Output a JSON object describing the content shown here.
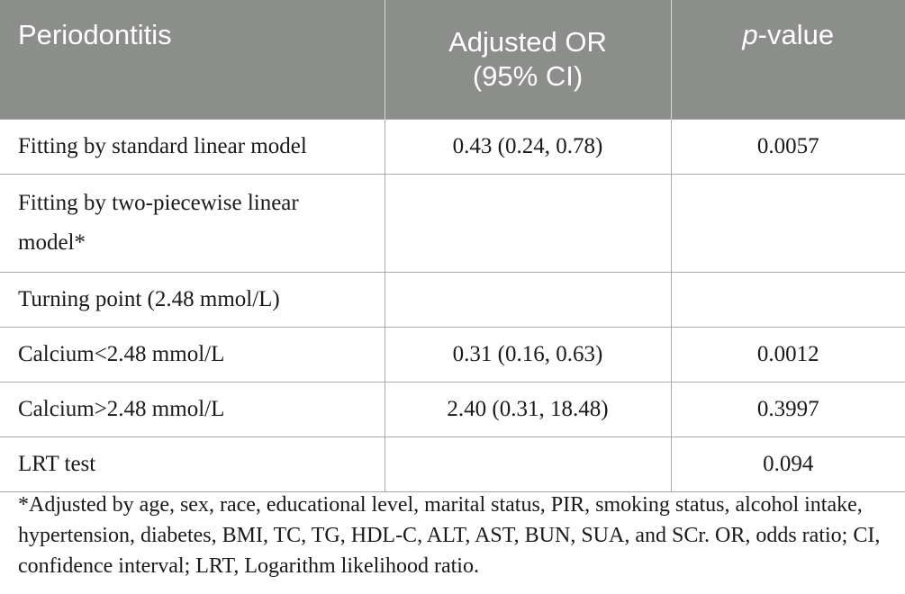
{
  "table": {
    "headers": {
      "col1": "Periodontitis",
      "col2_line1": "Adjusted OR",
      "col2_line2": "(95% CI)",
      "col3_italic": "p",
      "col3_rest": "-value"
    },
    "rows": [
      {
        "label": "Fitting by standard linear model",
        "or": "0.43 (0.24, 0.78)",
        "p": "0.0057"
      },
      {
        "label": "Fitting by two-piecewise linear model*",
        "or": "",
        "p": ""
      },
      {
        "label": "Turning point (2.48 mmol/L)",
        "or": "",
        "p": ""
      },
      {
        "label": "Calcium<2.48 mmol/L",
        "or": "0.31 (0.16, 0.63)",
        "p": "0.0012"
      },
      {
        "label": "Calcium>2.48 mmol/L",
        "or": "2.40 (0.31, 18.48)",
        "p": "0.3997"
      },
      {
        "label": "LRT test",
        "or": "",
        "p": "0.094"
      }
    ]
  },
  "footnote": "*Adjusted by age, sex, race, educational level, marital status, PIR, smoking status, alcohol intake, hypertension, diabetes, BMI, TC, TG, HDL-C, ALT, AST, BUN, SUA, and SCr. OR, odds ratio; CI, confidence interval; LRT, Logarithm likelihood ratio."
}
